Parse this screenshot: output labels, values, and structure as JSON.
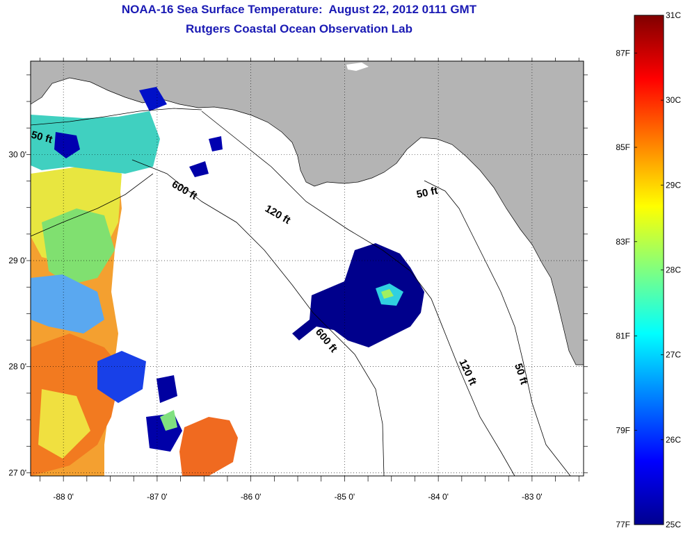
{
  "title": {
    "line1": "NOAA-16 Sea Surface Temperature:  August 22, 2012 0111 GMT",
    "line2": "Rutgers Coastal Ocean Observation Lab"
  },
  "map": {
    "lon_range": [
      -88.35,
      -82.45
    ],
    "lat_range": [
      26.97,
      30.88
    ],
    "lon_ticks": [
      "-88 0'",
      "-87 0'",
      "-86 0'",
      "-85 0'",
      "-84 0'",
      "-83 0'"
    ],
    "lon_tick_values": [
      -88,
      -87,
      -86,
      -85,
      -84,
      -83
    ],
    "lat_ticks": [
      "30 0'",
      "29 0'",
      "28 0'",
      "27 0'"
    ],
    "lat_tick_values": [
      30,
      29,
      28,
      27
    ],
    "grid": "dotted",
    "land_color": "#b4b4b4",
    "contour_labels": [
      "50 ft",
      "600 ft",
      "120 ft",
      "50 ft",
      "600 ft",
      "120 ft",
      "50 ft"
    ]
  },
  "colorbar": {
    "celsius_labels": [
      "31C",
      "30C",
      "29C",
      "28C",
      "27C",
      "26C",
      "25C"
    ],
    "celsius_values": [
      31,
      30,
      29,
      28,
      27,
      26,
      25
    ],
    "fahrenheit_labels": [
      "87F",
      "85F",
      "83F",
      "81F",
      "79F",
      "77F"
    ],
    "fahrenheit_values": [
      87,
      85,
      83,
      81,
      79,
      77
    ],
    "range_c": [
      25,
      31
    ],
    "colors": [
      "#00008f",
      "#0000ff",
      "#0080ff",
      "#00ffff",
      "#80ff80",
      "#ffff00",
      "#ff8000",
      "#ff0000",
      "#800000"
    ]
  }
}
